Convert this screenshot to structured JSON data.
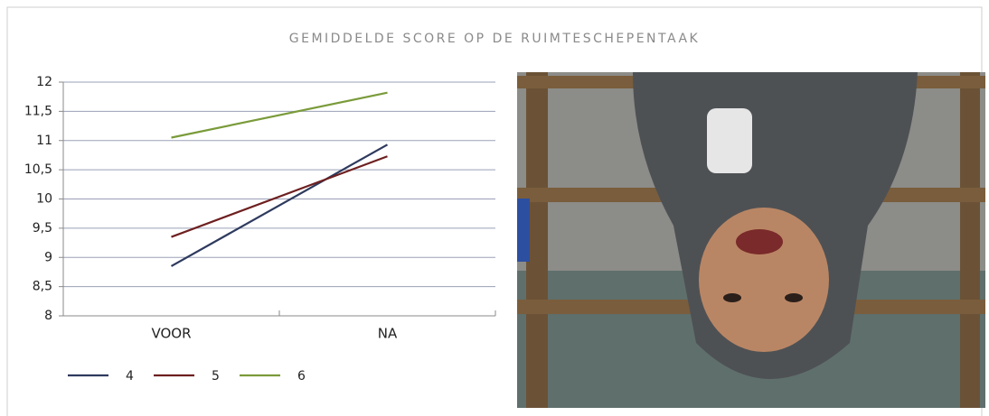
{
  "chart_data": {
    "type": "line",
    "title": "GEMIDDELDE SCORE OP DE RUIMTESCHEPENTAAK",
    "categories": [
      "VOOR",
      "NA"
    ],
    "series": [
      {
        "name": "4",
        "color": "#2e3a5e",
        "values": [
          8.85,
          10.93
        ]
      },
      {
        "name": "5",
        "color": "#6e1f1f",
        "values": [
          9.35,
          10.73
        ]
      },
      {
        "name": "6",
        "color": "#7a9b3a",
        "values": [
          11.05,
          11.82
        ]
      }
    ],
    "ylim": [
      8,
      12
    ],
    "yticks": [
      8,
      {
        "value": 8.5,
        "label": "8,5"
      },
      9,
      {
        "value": 9.5,
        "label": "9,5"
      },
      10,
      {
        "value": 10.5,
        "label": "10,5"
      },
      11,
      {
        "value": 11.5,
        "label": "11,5"
      },
      12
    ],
    "grid": true,
    "legend": "bottom"
  }
}
